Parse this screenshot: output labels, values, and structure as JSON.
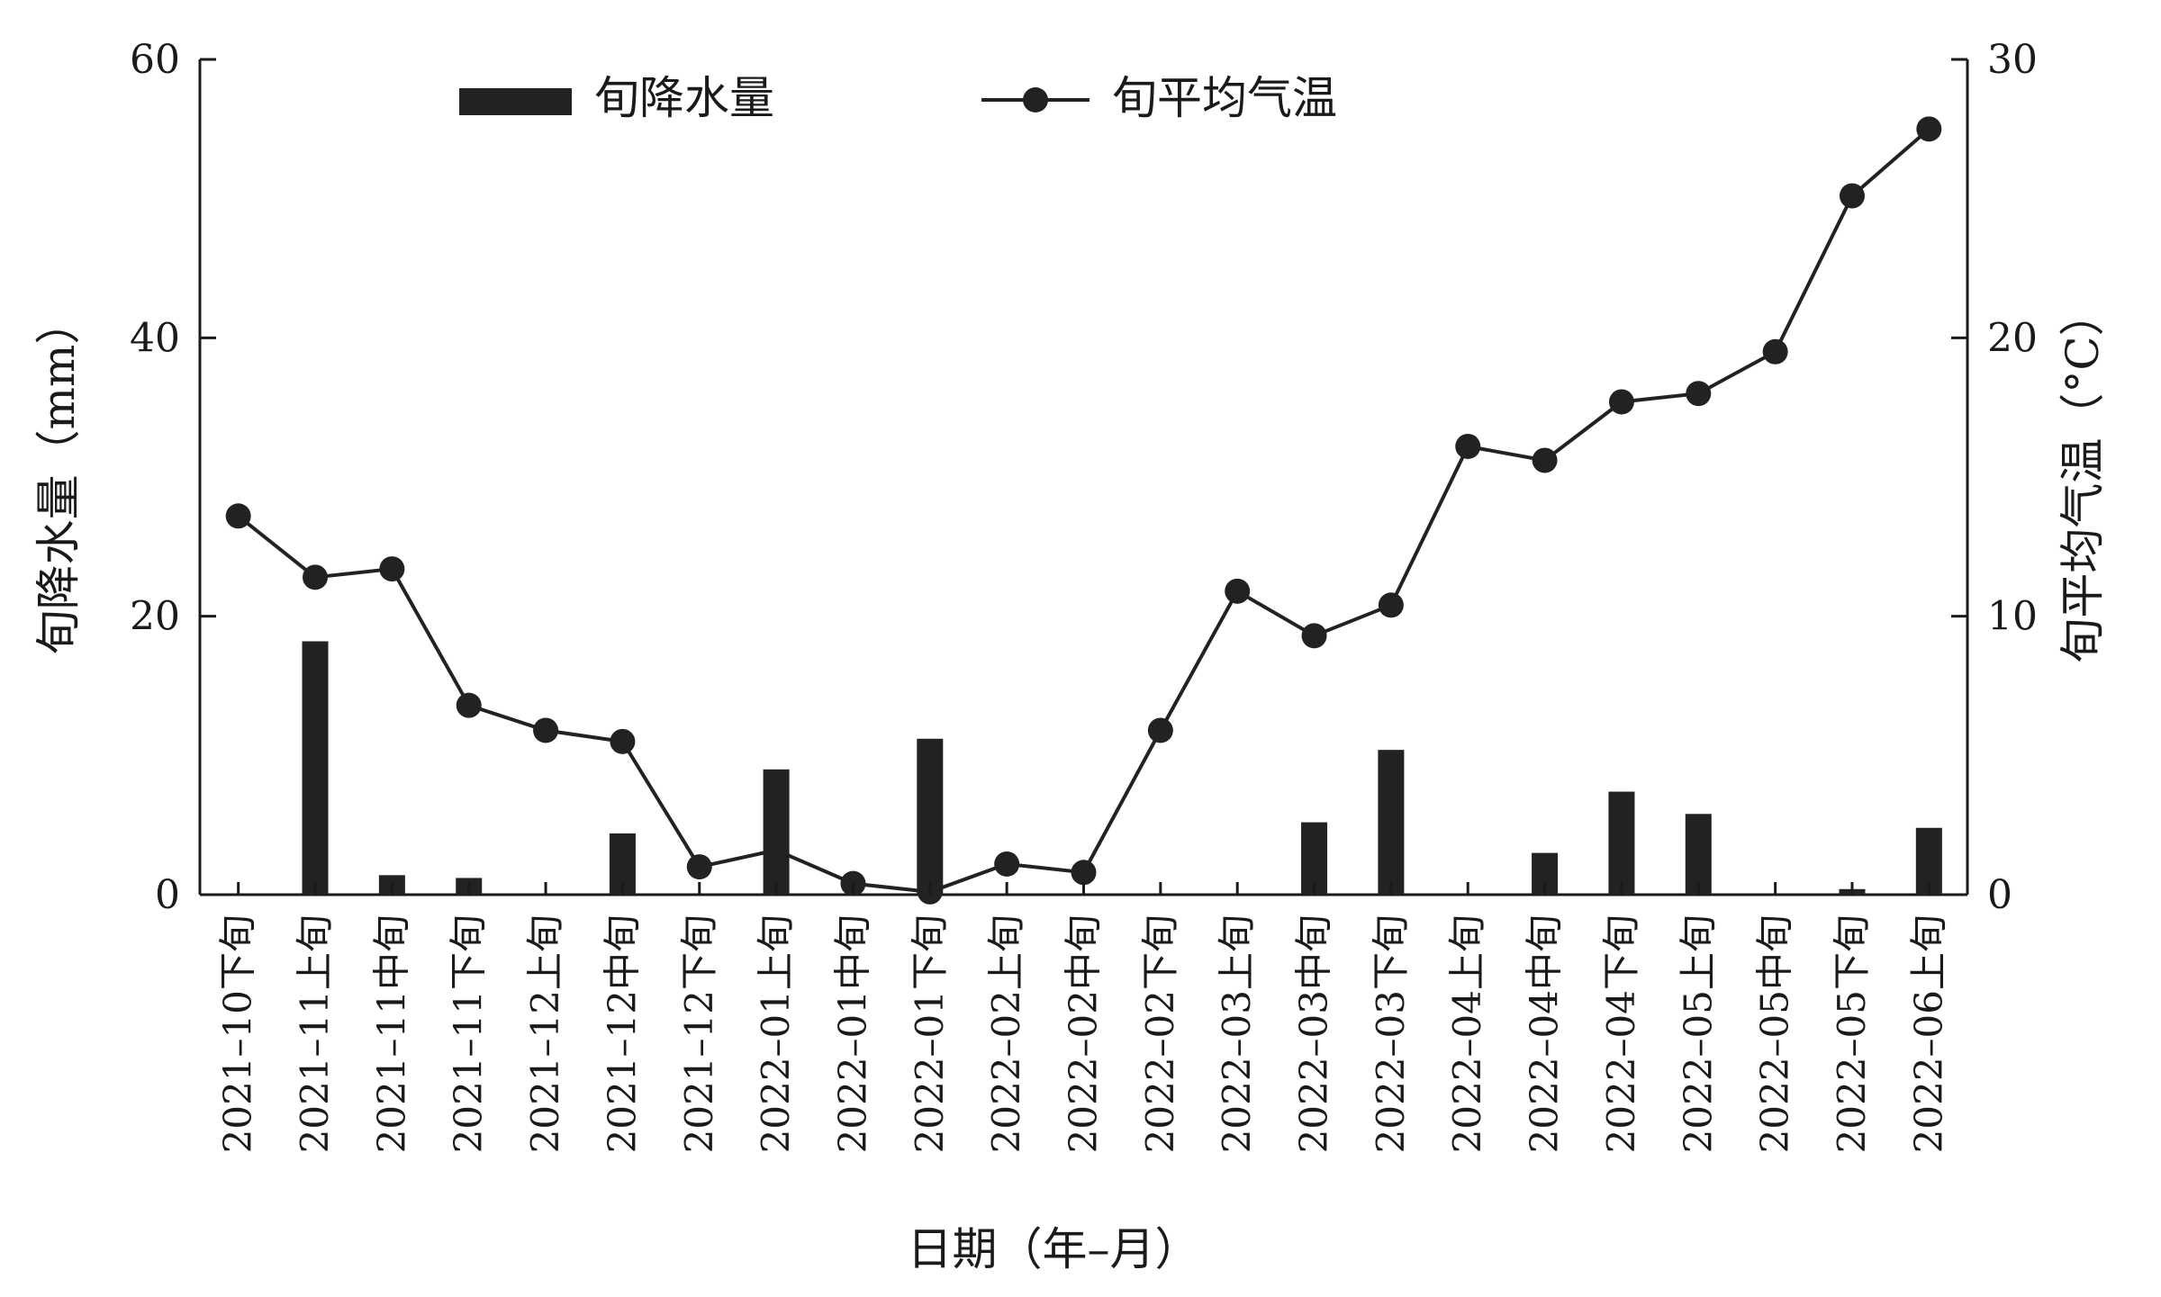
{
  "chart_data": {
    "type": "bar+line",
    "xlabel": "日期（年–月）",
    "ylabel_left": "旬降水量（mm）",
    "ylabel_right": "旬平均气温（°C）",
    "ylim_left": [
      0,
      60
    ],
    "ylim_right": [
      0,
      30
    ],
    "yticks_left": [
      "0",
      "20",
      "40",
      "60"
    ],
    "yticks_right": [
      "0",
      "10",
      "20",
      "30"
    ],
    "grid": false,
    "legend_position": "top-center",
    "categories": [
      "2021–10下旬",
      "2021–11上旬",
      "2021–11中旬",
      "2021–11下旬",
      "2021–12上旬",
      "2021–12中旬",
      "2021–12下旬",
      "2022–01上旬",
      "2022–01中旬",
      "2022–01下旬",
      "2022–02上旬",
      "2022–02中旬",
      "2022–02下旬",
      "2022–03上旬",
      "2022–03中旬",
      "2022–03下旬",
      "2022–04上旬",
      "2022–04中旬",
      "2022–04下旬",
      "2022–05上旬",
      "2022–05中旬",
      "2022–05下旬",
      "2022–06上旬"
    ],
    "series": [
      {
        "name": "旬降水量",
        "type": "bar",
        "axis": "left",
        "color": "#222222",
        "values": [
          0,
          18.2,
          1.4,
          1.2,
          0,
          4.4,
          0,
          9.0,
          0,
          11.2,
          0,
          0,
          0,
          0,
          5.2,
          10.4,
          0,
          3.0,
          7.4,
          5.8,
          0,
          0.4,
          4.8
        ]
      },
      {
        "name": "旬平均气温",
        "type": "line",
        "axis": "right",
        "color": "#222222",
        "values": [
          13.6,
          11.4,
          11.7,
          6.8,
          5.9,
          5.5,
          1.0,
          1.6,
          0.4,
          0.1,
          1.1,
          0.8,
          5.9,
          10.9,
          9.3,
          10.4,
          16.1,
          15.6,
          17.7,
          18.0,
          19.5,
          25.1,
          27.5
        ]
      }
    ]
  }
}
